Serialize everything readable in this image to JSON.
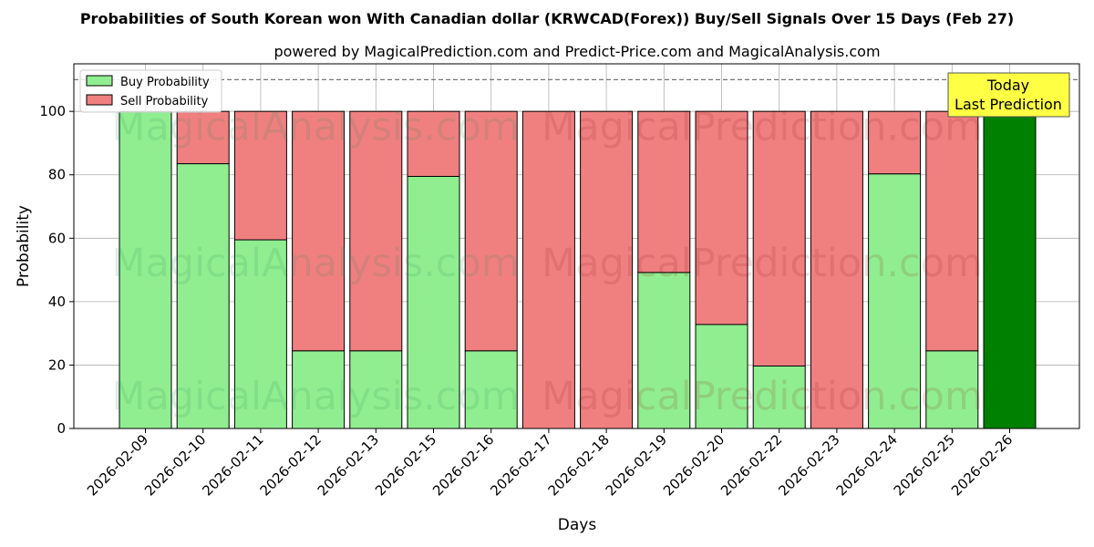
{
  "chart_data": {
    "type": "bar",
    "stacked": true,
    "title": "Probabilities of South Korean won With Canadian dollar (KRWCAD(Forex)) Buy/Sell Signals Over 15 Days (Feb 27)",
    "subtitle": "powered by MagicalPrediction.com and Predict-Price.com and MagicalAnalysis.com",
    "xlabel": "Days",
    "ylabel": "Probability",
    "ylim": [
      0,
      115
    ],
    "yticks": [
      0,
      20,
      40,
      60,
      80,
      100
    ],
    "grid": true,
    "legend_position": "top-left",
    "reference_line": 110,
    "categories": [
      "2026-02-09",
      "2026-02-10",
      "2026-02-11",
      "2026-02-12",
      "2026-02-13",
      "2026-02-15",
      "2026-02-16",
      "2026-02-17",
      "2026-02-18",
      "2026-02-19",
      "2026-02-20",
      "2026-02-22",
      "2026-02-23",
      "2026-02-24",
      "2026-02-25",
      "2026-02-26"
    ],
    "series": [
      {
        "name": "Buy Probability",
        "color": "#90ee90",
        "values": [
          100,
          83.5,
          59.5,
          24.5,
          24.5,
          79.5,
          24.5,
          0,
          0,
          49.2,
          32.8,
          19.7,
          0,
          80.3,
          24.5,
          100
        ]
      },
      {
        "name": "Sell Probability",
        "color": "#f08080",
        "values": [
          0,
          16.5,
          40.5,
          75.5,
          75.5,
          20.5,
          75.5,
          100,
          100,
          50.8,
          67.2,
          80.3,
          100,
          19.7,
          75.5,
          0
        ]
      }
    ],
    "highlight": {
      "category": "2026-02-26",
      "color": "#008000"
    },
    "annotation": {
      "line1": "Today",
      "line2": "Last Prediction",
      "background": "#ffff44"
    },
    "watermarks": [
      "MagicalAnalysis.com",
      "MagicalPrediction.com"
    ]
  }
}
